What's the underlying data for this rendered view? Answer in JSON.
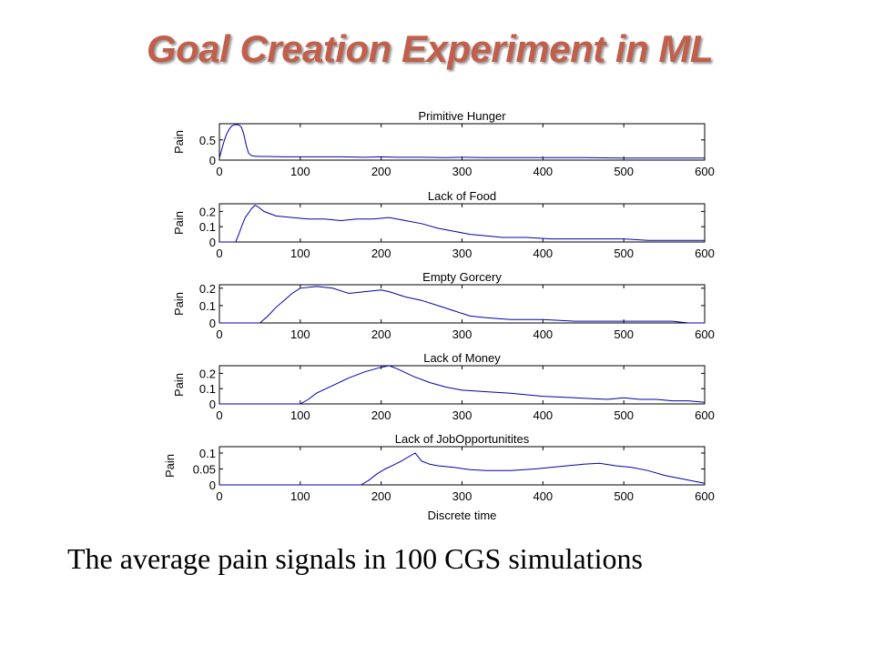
{
  "slide": {
    "title": "Goal Creation Experiment in ML",
    "caption": "The average pain signals in 100 CGS simulations"
  },
  "colors": {
    "title": "#c0604c",
    "line": "#0000aa",
    "axes": "#000000"
  },
  "chart_data": [
    {
      "type": "line",
      "title": "Primitive Hunger",
      "xlabel": "",
      "ylabel": "Pain",
      "xlim": [
        0,
        600
      ],
      "ylim": [
        0,
        0.9
      ],
      "xticks": [
        0,
        100,
        200,
        300,
        400,
        500,
        600
      ],
      "yticks": [
        0,
        0.5
      ],
      "ytick_labels": [
        "0",
        "0.5"
      ],
      "grid": false,
      "x": [
        0,
        3,
        6,
        9,
        12,
        15,
        18,
        21,
        24,
        27,
        30,
        33,
        36,
        39,
        42,
        50,
        60,
        80,
        100,
        120,
        150,
        180,
        200,
        220,
        250,
        280,
        300,
        330,
        360,
        400,
        450,
        500,
        550,
        600
      ],
      "y": [
        0.05,
        0.28,
        0.48,
        0.65,
        0.76,
        0.84,
        0.87,
        0.88,
        0.87,
        0.82,
        0.66,
        0.38,
        0.17,
        0.12,
        0.1,
        0.09,
        0.09,
        0.08,
        0.08,
        0.08,
        0.08,
        0.07,
        0.08,
        0.07,
        0.07,
        0.06,
        0.07,
        0.06,
        0.06,
        0.06,
        0.06,
        0.05,
        0.05,
        0.05
      ]
    },
    {
      "type": "line",
      "title": "Lack of Food",
      "xlabel": "",
      "ylabel": "Pain",
      "xlim": [
        0,
        600
      ],
      "ylim": [
        0,
        0.25
      ],
      "xticks": [
        0,
        100,
        200,
        300,
        400,
        500,
        600
      ],
      "yticks": [
        0,
        0.1,
        0.2
      ],
      "ytick_labels": [
        "0",
        "0.1",
        "0.2"
      ],
      "grid": false,
      "x": [
        0,
        20,
        24,
        28,
        32,
        36,
        40,
        44,
        48,
        55,
        70,
        90,
        110,
        130,
        150,
        170,
        190,
        210,
        230,
        250,
        270,
        290,
        310,
        330,
        350,
        380,
        410,
        440,
        470,
        500,
        530,
        560,
        600
      ],
      "y": [
        0,
        0,
        0.05,
        0.11,
        0.16,
        0.19,
        0.22,
        0.24,
        0.23,
        0.2,
        0.17,
        0.16,
        0.15,
        0.15,
        0.14,
        0.15,
        0.15,
        0.16,
        0.14,
        0.12,
        0.09,
        0.07,
        0.05,
        0.04,
        0.03,
        0.03,
        0.02,
        0.02,
        0.02,
        0.02,
        0.01,
        0.01,
        0.01
      ]
    },
    {
      "type": "line",
      "title": "Empty Gorcery",
      "xlabel": "",
      "ylabel": "Pain",
      "xlim": [
        0,
        600
      ],
      "ylim": [
        0,
        0.22
      ],
      "xticks": [
        0,
        100,
        200,
        300,
        400,
        500,
        600
      ],
      "yticks": [
        0,
        0.1,
        0.2
      ],
      "ytick_labels": [
        "0",
        "0.1",
        "0.2"
      ],
      "grid": false,
      "x": [
        0,
        50,
        60,
        70,
        80,
        90,
        100,
        120,
        140,
        160,
        180,
        200,
        210,
        230,
        250,
        270,
        290,
        310,
        330,
        360,
        400,
        440,
        480,
        520,
        560,
        580,
        600
      ],
      "y": [
        0,
        0,
        0.04,
        0.09,
        0.13,
        0.17,
        0.2,
        0.21,
        0.2,
        0.17,
        0.18,
        0.19,
        0.18,
        0.15,
        0.13,
        0.1,
        0.07,
        0.04,
        0.03,
        0.02,
        0.02,
        0.01,
        0.01,
        0.01,
        0.01,
        0,
        0
      ]
    },
    {
      "type": "line",
      "title": "Lack of Money",
      "xlabel": "",
      "ylabel": "Pain",
      "xlim": [
        0,
        600
      ],
      "ylim": [
        0,
        0.25
      ],
      "xticks": [
        0,
        100,
        200,
        300,
        400,
        500,
        600
      ],
      "yticks": [
        0,
        0.1,
        0.2
      ],
      "ytick_labels": [
        "0",
        "0.1",
        "0.2"
      ],
      "grid": false,
      "x": [
        0,
        100,
        110,
        120,
        140,
        160,
        180,
        200,
        210,
        220,
        240,
        260,
        280,
        300,
        330,
        360,
        400,
        440,
        480,
        500,
        520,
        540,
        560,
        580,
        600
      ],
      "y": [
        0,
        0,
        0.03,
        0.07,
        0.12,
        0.17,
        0.21,
        0.24,
        0.25,
        0.23,
        0.18,
        0.14,
        0.11,
        0.09,
        0.08,
        0.07,
        0.05,
        0.04,
        0.03,
        0.04,
        0.03,
        0.03,
        0.02,
        0.02,
        0.01
      ]
    },
    {
      "type": "line",
      "title": "Lack of JobOpportunitites",
      "xlabel": "Discrete time",
      "ylabel": "Pain",
      "xlim": [
        0,
        600
      ],
      "ylim": [
        0,
        0.12
      ],
      "xticks": [
        0,
        100,
        200,
        300,
        400,
        500,
        600
      ],
      "yticks": [
        0,
        0.05,
        0.1
      ],
      "ytick_labels": [
        "0",
        "0.05",
        "0.1"
      ],
      "grid": false,
      "x": [
        0,
        175,
        185,
        195,
        205,
        215,
        225,
        235,
        242,
        250,
        260,
        270,
        290,
        310,
        330,
        360,
        390,
        410,
        430,
        450,
        470,
        490,
        510,
        530,
        550,
        570,
        590,
        600
      ],
      "y": [
        0,
        0,
        0.015,
        0.035,
        0.05,
        0.062,
        0.075,
        0.09,
        0.1,
        0.075,
        0.065,
        0.06,
        0.055,
        0.048,
        0.045,
        0.045,
        0.05,
        0.055,
        0.06,
        0.065,
        0.068,
        0.06,
        0.055,
        0.045,
        0.03,
        0.02,
        0.01,
        0.005
      ]
    }
  ]
}
